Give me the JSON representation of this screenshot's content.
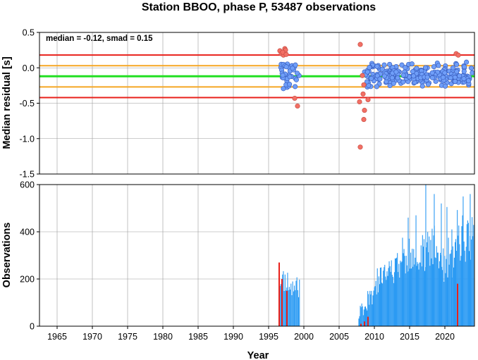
{
  "chart_data": [
    {
      "type": "scatter",
      "title": "Station BBOO, phase P, 53487 observations",
      "ylabel": "Median residual [s]",
      "xlim": [
        1962.5,
        2024.2
      ],
      "ylim": [
        -1.5,
        0.5
      ],
      "x_ticks": [
        1965,
        1970,
        1975,
        1980,
        1985,
        1990,
        1995,
        2000,
        2005,
        2010,
        2015,
        2020
      ],
      "y_ticks": [
        0.5,
        0.0,
        -0.5,
        -1.0,
        -1.5
      ],
      "y_tick_labels": [
        "0.5",
        "0.0",
        "-0.5",
        "-1.0",
        "-1.5"
      ],
      "grid": true,
      "annotation": "median = -0.12, smad = 0.15",
      "reference_lines": [
        {
          "role": "upper-outer",
          "y": 0.18,
          "color": "#e8201a"
        },
        {
          "role": "upper-inner",
          "y": 0.03,
          "color": "#f5a623"
        },
        {
          "role": "median",
          "y": -0.12,
          "color": "#22e022"
        },
        {
          "role": "lower-inner",
          "y": -0.27,
          "color": "#f5a623"
        },
        {
          "role": "lower-outer",
          "y": -0.42,
          "color": "#e8201a"
        }
      ],
      "colors": {
        "inlier": "#6f9ef8",
        "outlier": "#f27065"
      },
      "seed": 7
    },
    {
      "type": "bar",
      "xlabel": "Year",
      "ylabel": "Observations",
      "xlim": [
        1962.5,
        2024.2
      ],
      "ylim": [
        0,
        600
      ],
      "x_tick_labels": [
        "1965",
        "1970",
        "1975",
        "1980",
        "1985",
        "1990",
        "1995",
        "2000",
        "2005",
        "2010",
        "2015",
        "2020"
      ],
      "y_ticks": [
        0,
        200,
        400,
        600
      ],
      "y_tick_labels": [
        "0",
        "200",
        "400",
        "600"
      ],
      "grid": true,
      "colors": {
        "bars": "#2b9af3",
        "outlier_bars": "#e8201a"
      },
      "outlier_years": [
        1996.5,
        1996.9,
        1997.6,
        2008.1,
        2008.6,
        2009.1,
        2021.8
      ],
      "outlier_heights": [
        270,
        200,
        150,
        10,
        20,
        40,
        180
      ],
      "seed": 11
    }
  ]
}
